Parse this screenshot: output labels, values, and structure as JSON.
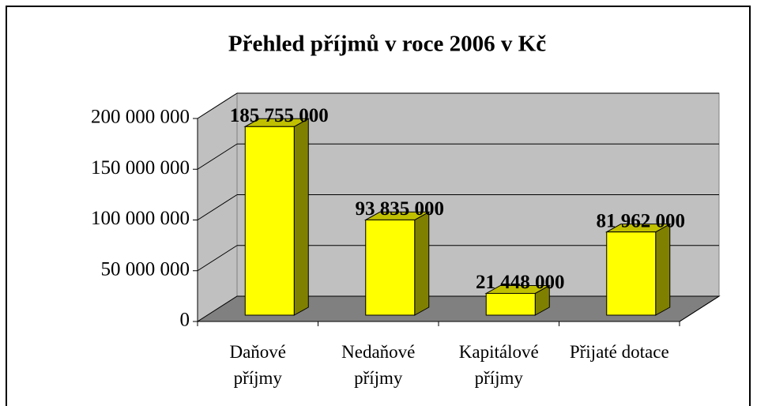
{
  "chart_data": {
    "type": "bar3d",
    "title": "Přehled příjmů v roce 2006 v Kč",
    "categories": [
      "Daňové příjmy",
      "Nedaňové příjmy",
      "Kapitálové příjmy",
      "Přijaté dotace"
    ],
    "values": [
      185755000,
      93835000,
      21448000,
      81962000
    ],
    "value_labels": [
      "185 755 000",
      "93 835 000",
      "21 448 000",
      "81 962 000"
    ],
    "color": "#ffff00",
    "ylim": [
      0,
      200000000
    ],
    "yticks": [
      0,
      {
        "value": 50000000,
        "label": "50 000 000"
      },
      {
        "value": 100000000,
        "label": "100 000 000"
      },
      {
        "value": 150000000,
        "label": "150 000 000"
      },
      {
        "value": 200000000,
        "label": "200 000 000"
      }
    ],
    "grid": true
  }
}
